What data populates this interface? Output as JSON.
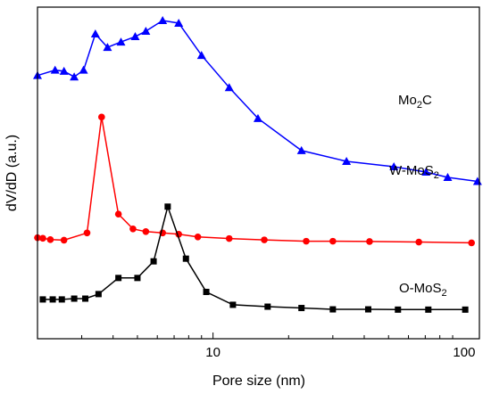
{
  "chart_data": {
    "type": "line",
    "xlabel": "Pore size (nm)",
    "ylabel": "dV/dD (a.u.)",
    "x_scale": "log",
    "xlim": [
      2,
      115
    ],
    "xticks": [
      10,
      100
    ],
    "x_tick_labels": [
      "10",
      "100"
    ],
    "y_ticks": false,
    "grid": false,
    "legend": "labels beside each curve (right)",
    "series": [
      {
        "base": "Mo",
        "sub": "2",
        "rest": "C",
        "color": "#0000ff",
        "marker": "triangle",
        "x": [
          2.0,
          2.35,
          2.55,
          2.8,
          3.05,
          3.4,
          3.8,
          4.3,
          4.9,
          5.4,
          6.3,
          7.3,
          9.0,
          11.6,
          15.1,
          22.5,
          34.0,
          52.5,
          70.5,
          86.0,
          113.0
        ],
        "y": [
          0.935,
          0.955,
          0.951,
          0.93,
          0.955,
          1.09,
          1.04,
          1.06,
          1.08,
          1.1,
          1.14,
          1.13,
          1.01,
          0.89,
          0.775,
          0.655,
          0.615,
          0.595,
          0.575,
          0.555,
          0.54
        ]
      },
      {
        "base": "W-MoS",
        "sub": "2",
        "rest": "",
        "color": "#ff0000",
        "marker": "circle",
        "x": [
          2.0,
          2.1,
          2.25,
          2.55,
          3.15,
          3.6,
          4.2,
          4.8,
          5.4,
          6.3,
          7.3,
          8.7,
          11.6,
          16.0,
          23.5,
          30.0,
          42.0,
          66.0,
          107.0
        ],
        "y": [
          0.33,
          0.328,
          0.323,
          0.321,
          0.348,
          0.78,
          0.418,
          0.363,
          0.353,
          0.348,
          0.343,
          0.333,
          0.327,
          0.322,
          0.317,
          0.317,
          0.316,
          0.314,
          0.311
        ]
      },
      {
        "base": "O-MoS",
        "sub": "2",
        "rest": "",
        "color": "#000000",
        "marker": "square",
        "x": [
          2.1,
          2.3,
          2.5,
          2.8,
          3.1,
          3.5,
          4.2,
          5.0,
          5.8,
          6.6,
          7.8,
          9.4,
          12.0,
          16.5,
          22.5,
          30.0,
          41.5,
          54.5,
          72.0,
          101.0
        ],
        "y": [
          0.1,
          0.1,
          0.1,
          0.103,
          0.103,
          0.12,
          0.18,
          0.18,
          0.242,
          0.446,
          0.252,
          0.128,
          0.08,
          0.073,
          0.068,
          0.063,
          0.063,
          0.062,
          0.062,
          0.062
        ]
      }
    ]
  }
}
